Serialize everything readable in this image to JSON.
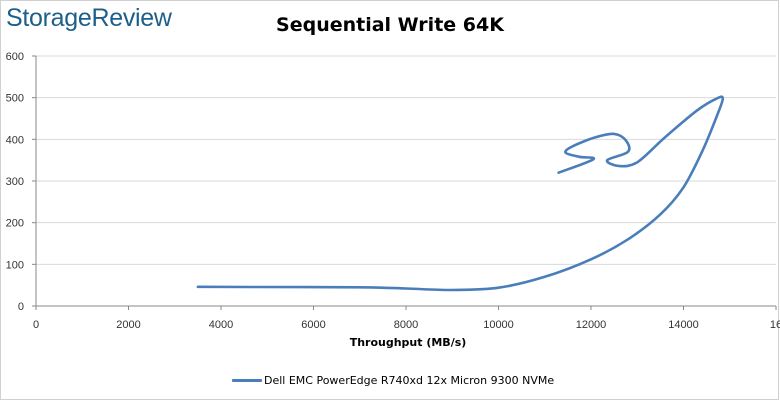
{
  "brand": {
    "logo_text": "StorageReview"
  },
  "chart_data": {
    "type": "line",
    "title": "Sequential Write 64K",
    "xlabel": "Throughput (MB/s)",
    "ylabel": "",
    "xlim": [
      0,
      16000
    ],
    "ylim": [
      0,
      600
    ],
    "x_ticks": [
      "0",
      "2000",
      "4000",
      "6000",
      "8000",
      "10000",
      "12000",
      "14000",
      "16"
    ],
    "y_ticks": [
      "0",
      "100",
      "200",
      "300",
      "400",
      "500",
      "600"
    ],
    "grid": {
      "horizontal": true,
      "vertical": false
    },
    "legend": "bottom",
    "series": [
      {
        "name": "Dell EMC PowerEdge R740xd 12x Micron 9300 NVMe",
        "color": "#4a7ebb",
        "points": [
          [
            3500,
            46
          ],
          [
            4600,
            45.5
          ],
          [
            7000,
            45
          ],
          [
            8000,
            42
          ],
          [
            9000,
            38.5
          ],
          [
            10000,
            44
          ],
          [
            11000,
            70
          ],
          [
            12000,
            112
          ],
          [
            12800,
            160
          ],
          [
            13500,
            220
          ],
          [
            14000,
            285
          ],
          [
            14400,
            370
          ],
          [
            14700,
            450
          ],
          [
            14850,
            498
          ],
          [
            14700,
            497
          ],
          [
            14300,
            470
          ],
          [
            13600,
            405
          ],
          [
            13000,
            345
          ],
          [
            12600,
            336
          ],
          [
            12350,
            350
          ],
          [
            12800,
            370
          ],
          [
            12750,
            398
          ],
          [
            12500,
            413
          ],
          [
            12100,
            405
          ],
          [
            11600,
            383
          ],
          [
            11450,
            368
          ],
          [
            11750,
            358
          ],
          [
            12050,
            352
          ],
          [
            11300,
            320
          ]
        ]
      }
    ]
  }
}
